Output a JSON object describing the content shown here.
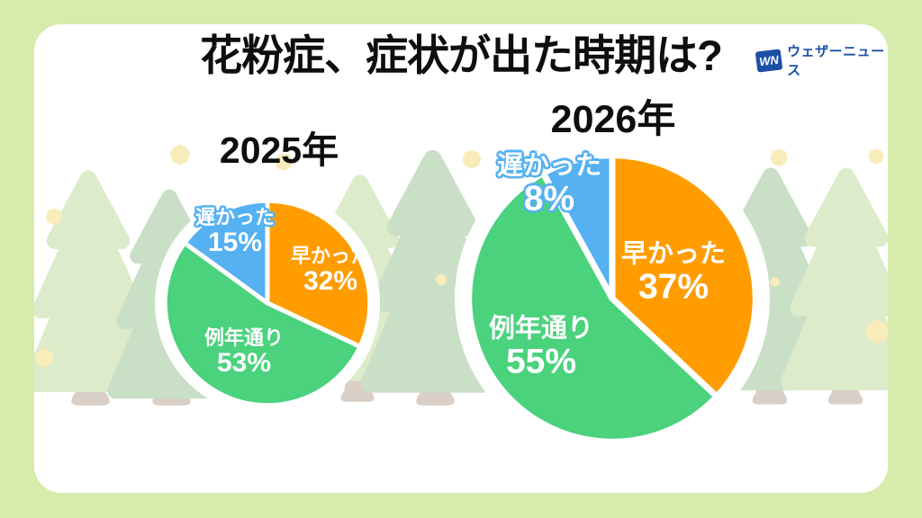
{
  "page": {
    "title": "花粉症、症状が出た時期は?"
  },
  "logo": {
    "mark": "WN",
    "text": "ウェザーニュース",
    "color": "#1d4fa5"
  },
  "chart_data": [
    {
      "type": "pie",
      "title": "2025年",
      "unit": "%",
      "direction": "clockwise",
      "start_angle_deg": 0,
      "legend_position": "none",
      "labels_on_slices": true,
      "slices": [
        {
          "label": "早かった",
          "value": 32,
          "display": "32%",
          "color": "#FF9D00"
        },
        {
          "label": "例年通り",
          "value": 53,
          "display": "53%",
          "color": "#4AD27D"
        },
        {
          "label": "遅かった",
          "value": 15,
          "display": "15%",
          "color": "#55B1F1"
        }
      ]
    },
    {
      "type": "pie",
      "title": "2026年",
      "unit": "%",
      "direction": "clockwise",
      "start_angle_deg": 0,
      "legend_position": "none",
      "labels_on_slices": true,
      "slices": [
        {
          "label": "早かった",
          "value": 37,
          "display": "37%",
          "color": "#FF9D00"
        },
        {
          "label": "例年通り",
          "value": 55,
          "display": "55%",
          "color": "#4AD27D"
        },
        {
          "label": "遅かった",
          "value": 8,
          "display": "8%",
          "color": "#55B1F1"
        }
      ]
    }
  ]
}
